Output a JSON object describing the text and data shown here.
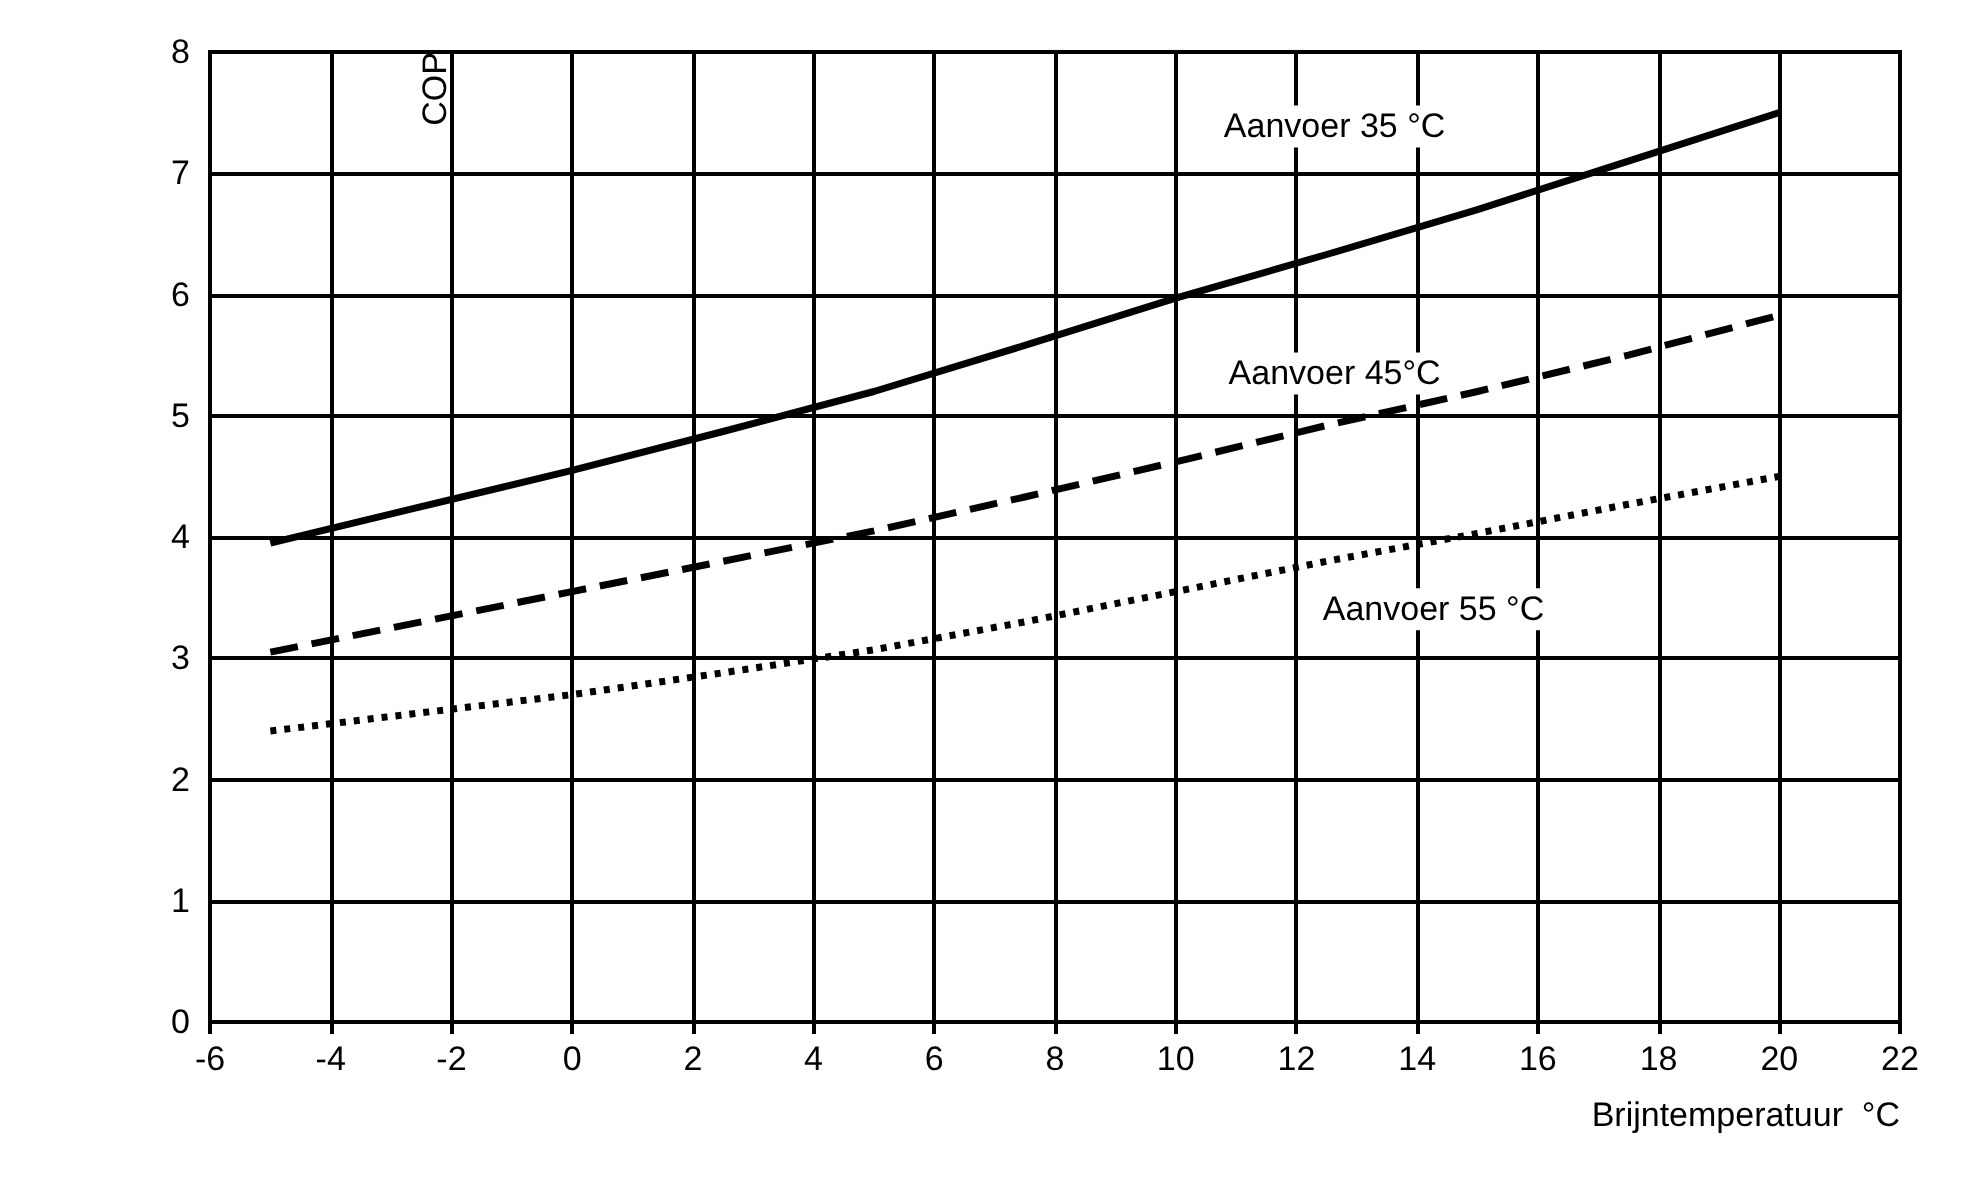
{
  "chart_data": {
    "type": "line",
    "xlabel": "Brijntemperatuur  °C",
    "ylabel": "COP",
    "x": [
      -5,
      -2.5,
      0,
      2.5,
      5,
      7.5,
      10,
      12.5,
      15,
      17.5,
      20
    ],
    "xlim": [
      -6,
      22
    ],
    "xticks": [
      -6,
      -4,
      -2,
      0,
      2,
      4,
      6,
      8,
      10,
      12,
      14,
      16,
      18,
      20,
      22
    ],
    "ylim": [
      0,
      8
    ],
    "yticks": [
      0,
      1,
      2,
      3,
      4,
      5,
      6,
      7,
      8
    ],
    "grid": true,
    "legend": false,
    "marker": "none",
    "series": [
      {
        "name": "Aanvoer 35 °C",
        "color": "#000000",
        "line_style": "solid",
        "values": [
          3.95,
          4.25,
          4.55,
          4.87,
          5.2,
          5.58,
          5.97,
          6.33,
          6.7,
          7.1,
          7.5
        ]
      },
      {
        "name": "Aanvoer 45°C",
        "color": "#000000",
        "line_style": "dashed",
        "values": [
          3.05,
          3.3,
          3.55,
          3.8,
          4.05,
          4.33,
          4.62,
          4.92,
          5.2,
          5.5,
          5.83
        ]
      },
      {
        "name": "Aanvoer 55 °C",
        "color": "#000000",
        "line_style": "dotted",
        "values": [
          2.4,
          2.55,
          2.7,
          2.88,
          3.07,
          3.3,
          3.55,
          3.8,
          4.03,
          4.27,
          4.5
        ]
      }
    ]
  }
}
